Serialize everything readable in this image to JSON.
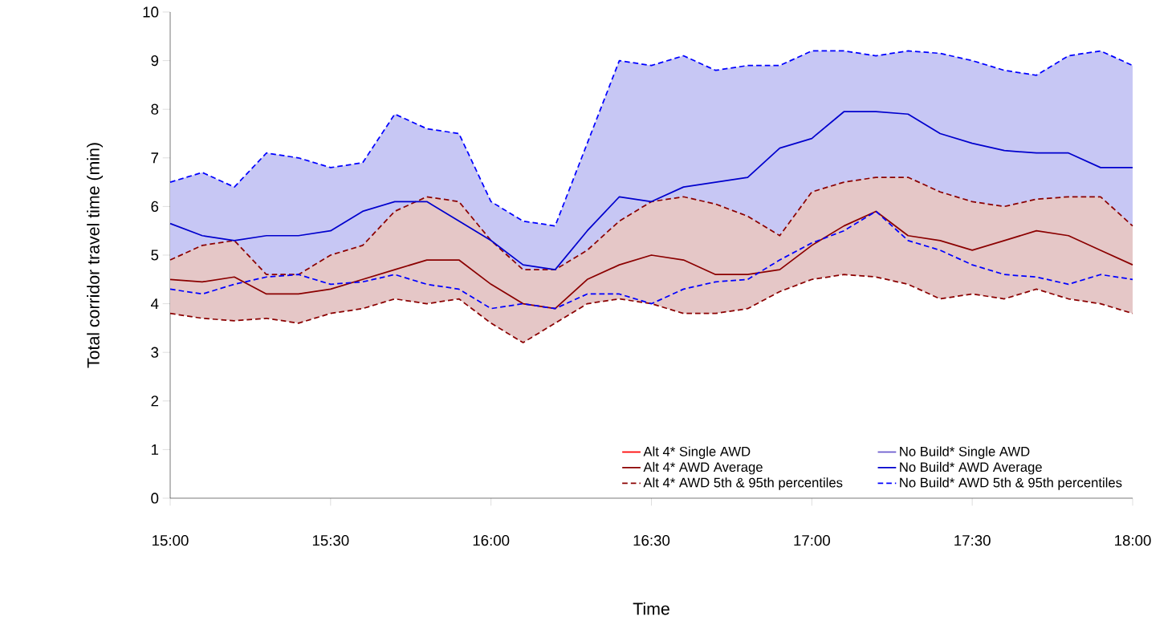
{
  "chart_data": {
    "type": "line",
    "xlabel": "Time",
    "ylabel": "Total corridor travel time (min)",
    "x": [
      15.0,
      15.1,
      15.2,
      15.3,
      15.4,
      15.5,
      15.6,
      15.7,
      15.8,
      15.9,
      16.0,
      16.1,
      16.2,
      16.3,
      16.4,
      16.5,
      16.6,
      16.7,
      16.8,
      16.9,
      17.0,
      17.1,
      17.2,
      17.3,
      17.4,
      17.5,
      17.6,
      17.7,
      17.8,
      17.9,
      18.0
    ],
    "xlim": [
      15,
      18
    ],
    "xticks": [
      {
        "value": 15,
        "label": "15:00"
      },
      {
        "value": 15.5,
        "label": "15:30"
      },
      {
        "value": 16,
        "label": "16:00"
      },
      {
        "value": 16.5,
        "label": "16:30"
      },
      {
        "value": 17,
        "label": "17:00"
      },
      {
        "value": 17.5,
        "label": "17:30"
      },
      {
        "value": 18,
        "label": "18:00"
      }
    ],
    "ylim": [
      0,
      10
    ],
    "yticks": [
      0,
      1,
      2,
      3,
      4,
      5,
      6,
      7,
      8,
      9,
      10
    ],
    "legend": "bottom right",
    "series": [
      {
        "name": "Alt 4* Single AWD",
        "color": "#ff0000",
        "values": [
          null,
          null,
          null,
          null,
          null,
          null,
          null,
          null,
          null,
          null,
          null,
          null,
          null,
          null,
          null,
          null,
          null,
          null,
          null,
          null,
          null,
          null,
          null,
          null,
          null,
          null,
          null,
          null,
          null,
          null,
          null
        ]
      },
      {
        "name": "Alt 4* AWD Average",
        "color": "#8b0000",
        "values": [
          4.5,
          4.45,
          4.55,
          4.2,
          4.2,
          4.3,
          4.5,
          4.7,
          4.9,
          4.9,
          4.4,
          4.0,
          3.9,
          4.5,
          4.8,
          5.0,
          4.9,
          4.6,
          4.6,
          4.7,
          5.2,
          5.6,
          5.9,
          5.4,
          5.3,
          5.1,
          5.3,
          5.5,
          5.4,
          5.1,
          4.8
        ],
        "lower": [
          3.8,
          3.7,
          3.65,
          3.7,
          3.6,
          3.8,
          3.9,
          4.1,
          4.0,
          4.1,
          3.6,
          3.2,
          3.6,
          4.0,
          4.1,
          4.0,
          3.8,
          3.8,
          3.9,
          4.25,
          4.5,
          4.6,
          4.55,
          4.4,
          4.1,
          4.2,
          4.1,
          4.3,
          4.1,
          4.0,
          3.8
        ],
        "upper": [
          4.9,
          5.2,
          5.3,
          4.6,
          4.6,
          5.0,
          5.2,
          5.9,
          6.2,
          6.1,
          5.3,
          4.7,
          4.7,
          5.1,
          5.7,
          6.1,
          6.2,
          6.05,
          5.8,
          5.4,
          6.3,
          6.5,
          6.6,
          6.6,
          6.3,
          6.1,
          6.0,
          6.15,
          6.2,
          6.2,
          5.6
        ]
      },
      {
        "name": "Alt 4* AWD 5th & 95th percentiles",
        "color": "#8b0000",
        "line_style": "dashed",
        "values": [
          4.9,
          5.2,
          5.3,
          4.6,
          4.6,
          5.0,
          5.2,
          5.9,
          6.2,
          6.1,
          5.3,
          4.7,
          4.7,
          5.1,
          5.7,
          6.1,
          6.2,
          6.05,
          5.8,
          5.4,
          6.3,
          6.5,
          6.6,
          6.6,
          6.3,
          6.1,
          6.0,
          6.15,
          6.2,
          6.2,
          5.6
        ]
      },
      {
        "color": "#8b0000",
        "line_style": "dashed",
        "values": [
          3.8,
          3.7,
          3.65,
          3.7,
          3.6,
          3.8,
          3.9,
          4.1,
          4.0,
          4.1,
          3.6,
          3.2,
          3.6,
          4.0,
          4.1,
          4.0,
          3.8,
          3.8,
          3.9,
          4.25,
          4.5,
          4.6,
          4.55,
          4.4,
          4.1,
          4.2,
          4.1,
          4.3,
          4.1,
          4.0,
          3.8
        ]
      },
      {
        "name": "No Build* Single AWD",
        "color": "#6a5acd",
        "values": [
          null,
          null,
          null,
          null,
          null,
          null,
          null,
          null,
          null,
          null,
          null,
          null,
          null,
          null,
          null,
          null,
          null,
          null,
          null,
          null,
          null,
          null,
          null,
          null,
          null,
          null,
          null,
          null,
          null,
          null,
          null
        ]
      },
      {
        "name": "No Build* AWD Average",
        "color": "#0000cd",
        "values": [
          5.65,
          5.4,
          5.3,
          5.4,
          5.4,
          5.5,
          5.9,
          6.1,
          6.1,
          5.7,
          5.3,
          4.8,
          4.7,
          5.5,
          6.2,
          6.1,
          6.4,
          6.5,
          6.6,
          7.2,
          7.4,
          7.95,
          7.95,
          7.9,
          7.5,
          7.3,
          7.15,
          7.1,
          7.1,
          6.8,
          6.8
        ],
        "lower": [
          4.3,
          4.2,
          4.4,
          4.55,
          4.6,
          4.4,
          4.45,
          4.6,
          4.4,
          4.3,
          3.9,
          4.0,
          3.9,
          4.2,
          4.2,
          4.0,
          4.3,
          4.45,
          4.5,
          4.9,
          5.25,
          5.5,
          5.9,
          5.3,
          5.1,
          4.8,
          4.6,
          4.55,
          4.4,
          4.6,
          4.5
        ],
        "upper": [
          6.5,
          6.7,
          6.4,
          7.1,
          7.0,
          6.8,
          6.9,
          7.9,
          7.6,
          7.5,
          6.1,
          5.7,
          5.6,
          7.3,
          9.0,
          8.9,
          9.1,
          8.8,
          8.9,
          8.9,
          9.2,
          9.2,
          9.1,
          9.2,
          9.15,
          9.0,
          8.8,
          8.7,
          9.1,
          9.2,
          8.9
        ]
      },
      {
        "name": "No Build* AWD 5th & 95th percentiles",
        "color": "#0000ff",
        "line_style": "dashed",
        "values": [
          6.5,
          6.7,
          6.4,
          7.1,
          7.0,
          6.8,
          6.9,
          7.9,
          7.6,
          7.5,
          6.1,
          5.7,
          5.6,
          7.3,
          9.0,
          8.9,
          9.1,
          8.8,
          8.9,
          8.9,
          9.2,
          9.2,
          9.1,
          9.2,
          9.15,
          9.0,
          8.8,
          8.7,
          9.1,
          9.2,
          8.9
        ]
      },
      {
        "color": "#0000ff",
        "line_style": "dashed",
        "values": [
          4.3,
          4.2,
          4.4,
          4.55,
          4.6,
          4.4,
          4.45,
          4.6,
          4.4,
          4.3,
          3.9,
          4.0,
          3.9,
          4.2,
          4.2,
          4.0,
          4.3,
          4.45,
          4.5,
          4.9,
          5.25,
          5.5,
          5.9,
          5.3,
          5.1,
          4.8,
          4.6,
          4.55,
          4.4,
          4.6,
          4.5
        ]
      }
    ]
  }
}
